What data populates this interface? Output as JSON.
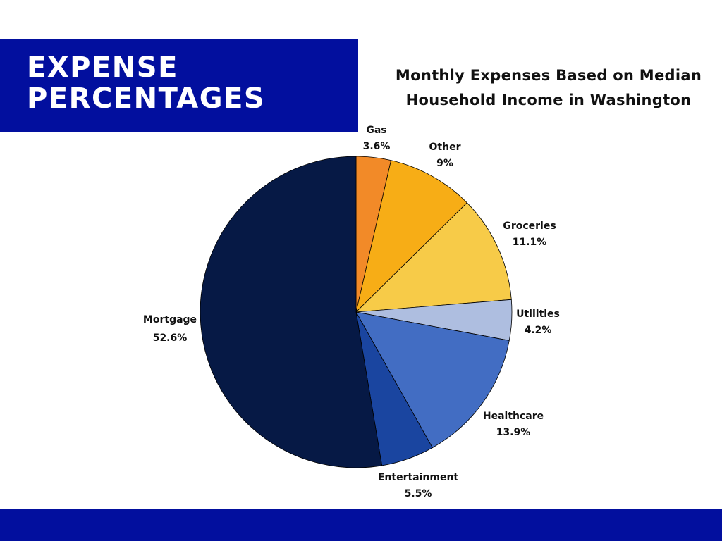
{
  "banner": {
    "line1": "EXPENSE",
    "line2": "PERCENTAGES"
  },
  "chart_data": {
    "type": "pie",
    "title_lines": [
      "Monthly Expenses Based on Median",
      "Household Income in Washington"
    ],
    "slices": [
      {
        "label": "Gas",
        "value": 3.6,
        "display": "3.6%",
        "color": "#f28a28"
      },
      {
        "label": "Other",
        "value": 9.0,
        "display": "9%",
        "color": "#f7ad16"
      },
      {
        "label": "Groceries",
        "value": 11.1,
        "display": "11.1%",
        "color": "#f7cb48"
      },
      {
        "label": "Utilities",
        "value": 4.2,
        "display": "4.2%",
        "color": "#aebee0"
      },
      {
        "label": "Healthcare",
        "value": 13.9,
        "display": "13.9%",
        "color": "#426dc3"
      },
      {
        "label": "Entertainment",
        "value": 5.5,
        "display": "5.5%",
        "color": "#1a45a0"
      },
      {
        "label": "Mortgage",
        "value": 52.6,
        "display": "52.6%",
        "color": "#061945"
      }
    ],
    "start": "12 o'clock",
    "direction": "clockwise",
    "legend": "none"
  },
  "colors": {
    "banner": "#020f9e",
    "footer": "#020f9e"
  }
}
